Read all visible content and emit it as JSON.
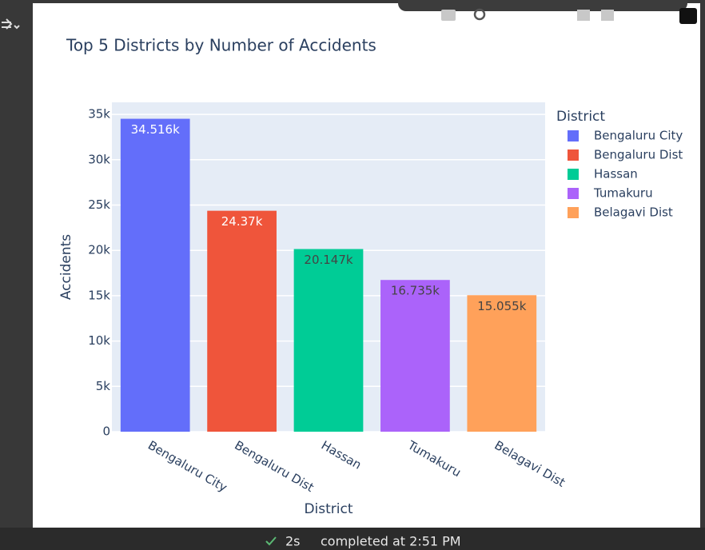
{
  "chart_data": {
    "type": "bar",
    "title": "Top 5 Districts by Number of Accidents",
    "x_label": "District",
    "y_label": "Accidents",
    "legend_title": "District",
    "categories": [
      "Bengaluru City",
      "Bengaluru Dist",
      "Hassan",
      "Tumakuru",
      "Belagavi Dist"
    ],
    "values": [
      34516,
      24370,
      20147,
      16735,
      15055
    ],
    "value_labels": [
      "34.516k",
      "24.37k",
      "20.147k",
      "16.735k",
      "15.055k"
    ],
    "colors": [
      "#636efa",
      "#ef553b",
      "#00cc96",
      "#ab63fa",
      "#ffa15a"
    ],
    "ylim": [
      0,
      36330
    ],
    "yticks": [
      0,
      {
        "value": 5000,
        "label": "5k"
      },
      {
        "value": 10000,
        "label": "10k"
      },
      {
        "value": 15000,
        "label": "15k"
      },
      {
        "value": 20000,
        "label": "20k"
      },
      {
        "value": 25000,
        "label": "25k"
      },
      {
        "value": 30000,
        "label": "30k"
      },
      {
        "value": 35000,
        "label": "35k"
      }
    ],
    "grid": true,
    "legend": "right"
  },
  "status": {
    "duration": "2s",
    "message": "completed at 2:51 PM"
  }
}
